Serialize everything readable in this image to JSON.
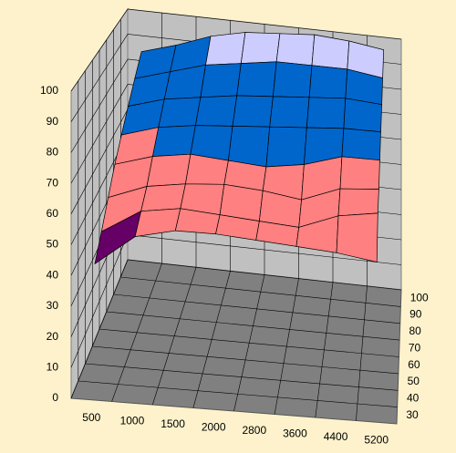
{
  "chart_data": {
    "type": "surface",
    "categories": [
      "500",
      "1000",
      "1500",
      "2000",
      "2800",
      "3600",
      "4400",
      "5200"
    ],
    "series": [
      {
        "name": "30",
        "values": [
          42,
          52,
          55,
          55,
          54,
          53,
          52,
          50
        ]
      },
      {
        "name": "40",
        "values": [
          48,
          56,
          58,
          57,
          56,
          55,
          60,
          62
        ]
      },
      {
        "name": "50",
        "values": [
          55,
          60,
          62,
          63,
          62,
          60,
          65,
          66
        ]
      },
      {
        "name": "60",
        "values": [
          62,
          66,
          68,
          67,
          66,
          68,
          72,
          72
        ]
      },
      {
        "name": "70",
        "values": [
          68,
          72,
          74,
          75,
          76,
          77,
          78,
          78
        ]
      },
      {
        "name": "80",
        "values": [
          74,
          78,
          80,
          82,
          83,
          84,
          85,
          84
        ]
      },
      {
        "name": "90",
        "values": [
          80,
          84,
          88,
          90,
          92,
          92,
          92,
          90
        ]
      },
      {
        "name": "100",
        "values": [
          86,
          90,
          95,
          98,
          99,
          100,
          99,
          97
        ]
      }
    ],
    "ylim": [
      0,
      100
    ],
    "yticks": [
      0,
      10,
      20,
      30,
      40,
      50,
      60,
      70,
      80,
      90,
      100
    ],
    "band_edges": [
      50,
      70,
      90,
      96,
      99
    ],
    "band_colors": [
      "#660066",
      "#ff8080",
      "#0066cc",
      "#ccccff",
      "#000080",
      "#ff00ff"
    ],
    "grid": true
  }
}
